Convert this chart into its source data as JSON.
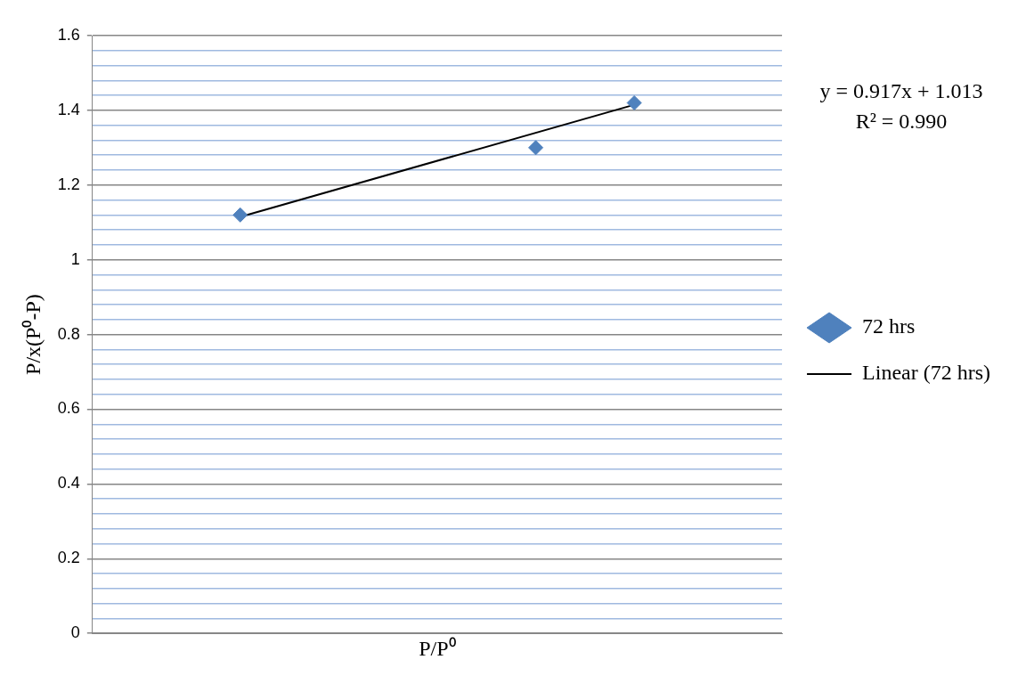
{
  "chart_data": {
    "type": "scatter",
    "xlabel": "P/P⁰",
    "ylabel": "P/x(P⁰-P)",
    "annotations": [
      "y = 0.917x + 1.013",
      "R² = 0.990"
    ],
    "categories": [
      null,
      null,
      null,
      null,
      null,
      null,
      null
    ],
    "ylim": [
      0,
      1.6
    ],
    "yticks": [
      0,
      {
        "value": 0.04,
        "label": null
      },
      {
        "value": 0.08,
        "label": null
      },
      {
        "value": 0.12,
        "label": null
      },
      {
        "value": 0.16,
        "label": null
      },
      0.2,
      {
        "value": 0.24,
        "label": null
      },
      {
        "value": 0.28,
        "label": null
      },
      {
        "value": 0.32,
        "label": null
      },
      {
        "value": 0.36,
        "label": null
      },
      0.4,
      {
        "value": 0.44,
        "label": null
      },
      {
        "value": 0.48,
        "label": null
      },
      {
        "value": 0.52,
        "label": null
      },
      {
        "value": 0.56,
        "label": null
      },
      0.6,
      {
        "value": 0.64,
        "label": null
      },
      {
        "value": 0.68,
        "label": null
      },
      {
        "value": 0.72,
        "label": null
      },
      {
        "value": 0.76,
        "label": null
      },
      0.8,
      {
        "value": 0.84,
        "label": null
      },
      {
        "value": 0.88,
        "label": null
      },
      {
        "value": 0.92,
        "label": null
      },
      {
        "value": 0.96,
        "label": null
      },
      1,
      {
        "value": 1.04,
        "label": null
      },
      {
        "value": 1.08,
        "label": null
      },
      {
        "value": 1.12,
        "label": null
      },
      {
        "value": 1.16,
        "label": null
      },
      1.2,
      {
        "value": 1.24,
        "label": null
      },
      {
        "value": 1.28,
        "label": null
      },
      {
        "value": 1.32,
        "label": null
      },
      {
        "value": 1.36,
        "label": null
      },
      1.4,
      {
        "value": 1.44,
        "label": null
      },
      {
        "value": 1.48,
        "label": null
      },
      {
        "value": 1.52,
        "label": null
      },
      {
        "value": 1.56,
        "label": null
      },
      1.6
    ],
    "tick_labels": "y",
    "grid": "y",
    "legend": "right",
    "series": [
      {
        "name": "72 hrs",
        "marker": "diamond",
        "color": "#4f81bd",
        "values": [
          null,
          1.12,
          null,
          null,
          1.3,
          1.42,
          null
        ]
      },
      {
        "name": "Linear (72 hrs)",
        "type": "line",
        "marker": "none",
        "color": "#000000",
        "values": [
          null,
          1.115,
          null,
          null,
          null,
          1.415,
          null
        ]
      }
    ]
  }
}
